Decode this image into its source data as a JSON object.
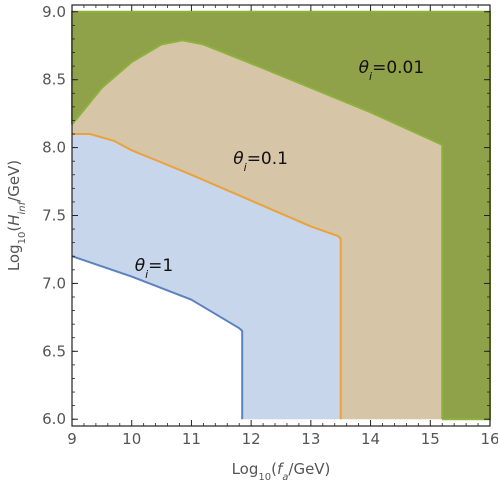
{
  "chart_data": {
    "type": "area",
    "title": "",
    "xlabel": {
      "prefix": "Log",
      "base": "10",
      "open": "(",
      "var": "f",
      "sub": "a",
      "unit": "/GeV)"
    },
    "ylabel": {
      "prefix": "Log",
      "base": "10",
      "open": "(",
      "var": "H",
      "sub": "inf",
      "unit": "/GeV)"
    },
    "xlim": [
      9,
      16
    ],
    "ylim": [
      5.95,
      9.05
    ],
    "xticks": [
      9,
      10,
      11,
      12,
      13,
      14,
      15,
      16
    ],
    "xtick_labels": [
      "9",
      "10",
      "11",
      "12",
      "13",
      "14",
      "15",
      "16"
    ],
    "yticks": [
      6.0,
      6.5,
      7.0,
      7.5,
      8.0,
      8.5,
      9.0
    ],
    "ytick_labels": [
      "6.0",
      "6.5",
      "7.0",
      "7.5",
      "8.0",
      "8.5",
      "9.0"
    ],
    "grid": false,
    "series": [
      {
        "name": "θi=0.01",
        "label": {
          "pre": "θ",
          "sub": "i",
          "post": "=0.01",
          "x": 13.8,
          "y": 8.55
        },
        "fill": "#8fa24a",
        "stroke": "#8db13a",
        "points": [
          [
            9.0,
            8.17
          ],
          [
            9.5,
            8.44
          ],
          [
            10.0,
            8.63
          ],
          [
            10.5,
            8.76
          ],
          [
            10.85,
            8.79
          ],
          [
            11.2,
            8.76
          ],
          [
            12.0,
            8.62
          ],
          [
            13.0,
            8.44
          ],
          [
            14.0,
            8.26
          ],
          [
            15.0,
            8.06
          ],
          [
            15.2,
            8.02
          ],
          [
            15.2,
            6.0
          ],
          [
            16.0,
            6.0
          ],
          [
            16.0,
            9.0
          ],
          [
            9.0,
            9.0
          ]
        ]
      },
      {
        "name": "θi=0.1",
        "label": {
          "pre": "θ",
          "sub": "i",
          "post": "=0.1",
          "x": 11.7,
          "y": 7.88
        },
        "fill": "#d7c5a8",
        "stroke": "#eaa23a",
        "points": [
          [
            9.0,
            8.1
          ],
          [
            9.15,
            8.1
          ],
          [
            9.3,
            8.1
          ],
          [
            9.7,
            8.05
          ],
          [
            10.0,
            7.98
          ],
          [
            10.5,
            7.89
          ],
          [
            11.0,
            7.8
          ],
          [
            12.0,
            7.61
          ],
          [
            13.0,
            7.42
          ],
          [
            13.45,
            7.35
          ],
          [
            13.5,
            7.33
          ],
          [
            13.5,
            6.0
          ],
          [
            15.2,
            6.0
          ],
          [
            15.2,
            8.02
          ],
          [
            15.0,
            8.06
          ],
          [
            14.0,
            8.26
          ],
          [
            13.0,
            8.44
          ],
          [
            12.0,
            8.62
          ],
          [
            11.2,
            8.76
          ],
          [
            10.85,
            8.79
          ],
          [
            10.5,
            8.76
          ],
          [
            10.0,
            8.63
          ],
          [
            9.5,
            8.44
          ],
          [
            9.0,
            8.17
          ]
        ]
      },
      {
        "name": "θi=1",
        "label": {
          "pre": "θ",
          "sub": "i",
          "post": "=1",
          "x": 10.05,
          "y": 7.09
        },
        "fill": "#c8d6ec",
        "stroke": "#5b82bf",
        "points": [
          [
            9.0,
            7.2
          ],
          [
            10.0,
            7.05
          ],
          [
            11.0,
            6.88
          ],
          [
            11.8,
            6.67
          ],
          [
            11.85,
            6.65
          ],
          [
            11.85,
            6.0
          ],
          [
            13.5,
            6.0
          ],
          [
            13.5,
            7.33
          ],
          [
            13.45,
            7.35
          ],
          [
            13.0,
            7.42
          ],
          [
            12.0,
            7.61
          ],
          [
            11.0,
            7.8
          ],
          [
            10.5,
            7.89
          ],
          [
            10.0,
            7.98
          ],
          [
            9.7,
            8.05
          ],
          [
            9.3,
            8.1
          ],
          [
            9.15,
            8.1
          ],
          [
            9.0,
            8.1
          ]
        ]
      }
    ]
  }
}
